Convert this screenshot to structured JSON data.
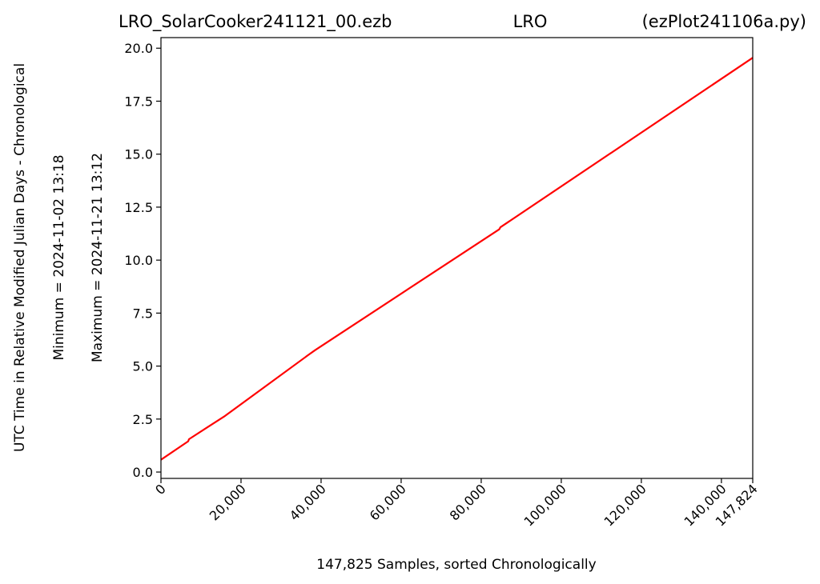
{
  "chart_data": {
    "type": "line",
    "title": {
      "left": "LRO_SolarCooker241121_00.ezb",
      "center": "LRO",
      "right": "(ezPlot241106a.py)"
    },
    "xlabel": "147,825 Samples, sorted Chronologically",
    "ylabel_lines": [
      "UTC Time in Relative Modified Julian Days - Chronological",
      "Minimum = 2024-11-02   13:18",
      "Maximum = 2024-11-21   13:12"
    ],
    "xlim": [
      0,
      147824
    ],
    "ylim": [
      -0.3,
      20.5
    ],
    "x_ticks": [
      {
        "value": 0,
        "label": "0"
      },
      {
        "value": 20000,
        "label": "20,000"
      },
      {
        "value": 40000,
        "label": "40,000"
      },
      {
        "value": 60000,
        "label": "60,000"
      },
      {
        "value": 80000,
        "label": "80,000"
      },
      {
        "value": 100000,
        "label": "100,000"
      },
      {
        "value": 120000,
        "label": "120,000"
      },
      {
        "value": 140000,
        "label": "140,000"
      },
      {
        "value": 147824,
        "label": "147,824"
      }
    ],
    "y_ticks": [
      {
        "value": 0,
        "label": "0.0"
      },
      {
        "value": 2.5,
        "label": "2.5"
      },
      {
        "value": 5,
        "label": "5.0"
      },
      {
        "value": 7.5,
        "label": "7.5"
      },
      {
        "value": 10,
        "label": "10.0"
      },
      {
        "value": 12.5,
        "label": "12.5"
      },
      {
        "value": 15,
        "label": "15.0"
      },
      {
        "value": 17.5,
        "label": "17.5"
      },
      {
        "value": 20,
        "label": "20.0"
      }
    ],
    "grid": false,
    "series": [
      {
        "color": "#ff0000",
        "x": [
          0,
          6800,
          7000,
          16000,
          37000,
          38500,
          84500,
          84800,
          147824
        ],
        "y": [
          0.58,
          1.45,
          1.55,
          2.65,
          5.55,
          5.75,
          11.45,
          11.55,
          19.55
        ]
      }
    ]
  }
}
